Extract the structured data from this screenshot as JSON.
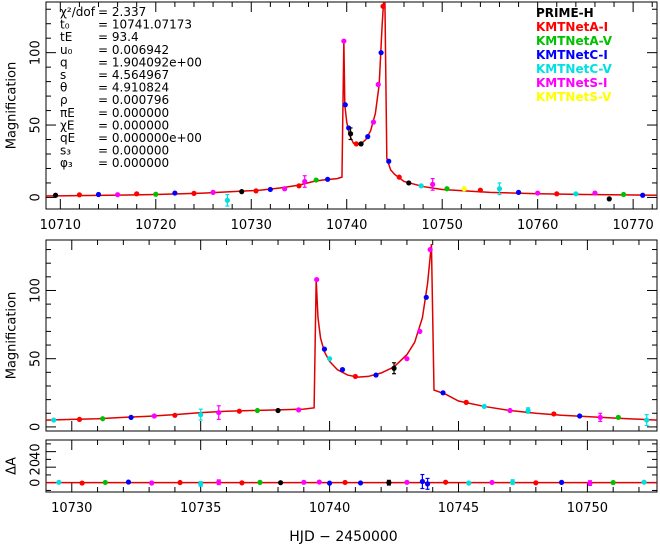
{
  "chart_data": [
    {
      "type": "line",
      "panel": "top",
      "ylabel": "Magnification",
      "xlim": [
        10708.5,
        10772.5
      ],
      "ylim": [
        -8,
        135
      ],
      "xticks": [
        10710,
        10720,
        10730,
        10740,
        10750,
        10760,
        10770
      ],
      "yticks": [
        0,
        50,
        100
      ],
      "fit_curve": {
        "name": "model",
        "color": "#e00000",
        "x": [
          10708.5,
          10715,
          10720,
          10725,
          10728,
          10731,
          10733,
          10735,
          10736.5,
          10737.5,
          10739.0,
          10739.5,
          10739.7,
          10739.8,
          10740.0,
          10740.3,
          10740.7,
          10741.1,
          10741.5,
          10742.0,
          10742.5,
          10743.0,
          10743.4,
          10743.7,
          10743.85,
          10744.0,
          10744.2,
          10744.6,
          10745.0,
          10746.0,
          10748.0,
          10750.0,
          10755.0,
          10760.0,
          10765.0,
          10772.5
        ],
        "y": [
          1,
          1.5,
          2,
          3,
          4,
          5,
          6.5,
          8.5,
          11,
          12,
          13,
          14,
          108,
          64,
          52,
          43,
          37.5,
          36.5,
          37,
          40,
          46,
          58,
          78,
          118,
          134,
          135,
          27,
          19,
          16,
          11,
          7.5,
          5.5,
          3.5,
          2.5,
          2,
          1.5
        ]
      },
      "observatories": [
        {
          "name": "PRIME-H",
          "color": "#000000"
        },
        {
          "name": "KMTNetA-I",
          "color": "#ff0000"
        },
        {
          "name": "KMTNetA-V",
          "color": "#00c000"
        },
        {
          "name": "KMTNetC-I",
          "color": "#0000ff"
        },
        {
          "name": "KMTNetC-V",
          "color": "#00e0e0"
        },
        {
          "name": "KMTNetS-I",
          "color": "#ff00ff"
        },
        {
          "name": "KMTNetS-V",
          "color": "#ffff00"
        }
      ],
      "parameters": [
        {
          "symbol": "χ²/dof",
          "text": "= 2.337"
        },
        {
          "symbol": "t₀",
          "text": "= 10741.07173"
        },
        {
          "symbol": "tE",
          "text": "= 93.4"
        },
        {
          "symbol": "u₀",
          "text": "= 0.006942"
        },
        {
          "symbol": "q",
          "text": "= 1.904092e+00"
        },
        {
          "symbol": "s",
          "text": "= 4.564967"
        },
        {
          "symbol": "θ",
          "text": "= 4.910824"
        },
        {
          "symbol": "ρ",
          "text": "= 0.000796"
        },
        {
          "symbol": "πE",
          "text": "= 0.000000"
        },
        {
          "symbol": "χE",
          "text": "= 0.000000"
        },
        {
          "symbol": "qE",
          "text": "= 0.000000e+00"
        },
        {
          "symbol": "s₃",
          "text": "= 0.000000"
        },
        {
          "symbol": "φ₃",
          "text": "= 0.000000"
        }
      ],
      "data_points": [
        {
          "x": 10709.5,
          "y": 1.5,
          "obs": 0
        },
        {
          "x": 10712,
          "y": 1.8,
          "obs": 1
        },
        {
          "x": 10714,
          "y": 2,
          "obs": 3
        },
        {
          "x": 10716,
          "y": 1.9,
          "obs": 5
        },
        {
          "x": 10718,
          "y": 2.5,
          "obs": 1
        },
        {
          "x": 10720,
          "y": 2.2,
          "obs": 2
        },
        {
          "x": 10722,
          "y": 3,
          "obs": 3
        },
        {
          "x": 10724,
          "y": 2.8,
          "obs": 1
        },
        {
          "x": 10726,
          "y": 3.5,
          "obs": 5
        },
        {
          "x": 10727.5,
          "y": -2,
          "obs": 4,
          "err": 4
        },
        {
          "x": 10729,
          "y": 4,
          "obs": 0
        },
        {
          "x": 10730.5,
          "y": 4.5,
          "obs": 1
        },
        {
          "x": 10732,
          "y": 5.5,
          "obs": 3
        },
        {
          "x": 10733.5,
          "y": 6,
          "obs": 5
        },
        {
          "x": 10735,
          "y": 8,
          "obs": 1
        },
        {
          "x": 10735.6,
          "y": 11,
          "obs": 5,
          "err": 4
        },
        {
          "x": 10736.8,
          "y": 12,
          "obs": 2
        },
        {
          "x": 10738,
          "y": 12.5,
          "obs": 3
        },
        {
          "x": 10739.7,
          "y": 108,
          "obs": 5
        },
        {
          "x": 10739.85,
          "y": 64,
          "obs": 3
        },
        {
          "x": 10740.2,
          "y": 48,
          "obs": 3
        },
        {
          "x": 10740.4,
          "y": 44,
          "obs": 0,
          "err": 4
        },
        {
          "x": 10741.0,
          "y": 37,
          "obs": 1
        },
        {
          "x": 10741.5,
          "y": 37,
          "obs": 0
        },
        {
          "x": 10742.2,
          "y": 42,
          "obs": 3
        },
        {
          "x": 10742.8,
          "y": 52,
          "obs": 5
        },
        {
          "x": 10743.3,
          "y": 78,
          "obs": 5
        },
        {
          "x": 10743.6,
          "y": 100,
          "obs": 3
        },
        {
          "x": 10743.8,
          "y": 132,
          "obs": 1
        },
        {
          "x": 10744.4,
          "y": 25,
          "obs": 3
        },
        {
          "x": 10745.5,
          "y": 14,
          "obs": 1
        },
        {
          "x": 10746.5,
          "y": 10,
          "obs": 0
        },
        {
          "x": 10747.8,
          "y": 8,
          "obs": 4
        },
        {
          "x": 10749,
          "y": 9,
          "obs": 5,
          "err": 4
        },
        {
          "x": 10750.5,
          "y": 6,
          "obs": 2
        },
        {
          "x": 10752.3,
          "y": 6,
          "obs": 6
        },
        {
          "x": 10754,
          "y": 5,
          "obs": 1
        },
        {
          "x": 10756,
          "y": 6,
          "obs": 4,
          "err": 4
        },
        {
          "x": 10758,
          "y": 3.5,
          "obs": 3
        },
        {
          "x": 10760,
          "y": 3,
          "obs": 5
        },
        {
          "x": 10762,
          "y": 2.5,
          "obs": 1
        },
        {
          "x": 10764,
          "y": 2.5,
          "obs": 4
        },
        {
          "x": 10766,
          "y": 3,
          "obs": 5
        },
        {
          "x": 10767.5,
          "y": -1,
          "obs": 0
        },
        {
          "x": 10769,
          "y": 2,
          "obs": 2
        },
        {
          "x": 10771,
          "y": 1.5,
          "obs": 3
        }
      ]
    },
    {
      "type": "line",
      "panel": "middle",
      "ylabel": "Magnification",
      "xlim": [
        10729,
        10752.7
      ],
      "ylim": [
        -3,
        137
      ],
      "xticks": [
        10730,
        10735,
        10740,
        10745,
        10750
      ],
      "yticks": [
        0,
        50,
        100
      ],
      "fit_curve": {
        "name": "model",
        "color": "#e00000",
        "x": [
          10729,
          10730,
          10731,
          10732,
          10733,
          10734,
          10735,
          10736,
          10737,
          10738,
          10739,
          10739.4,
          10739.48,
          10739.55,
          10739.65,
          10739.8,
          10740.0,
          10740.3,
          10740.7,
          10741.1,
          10741.5,
          10742.0,
          10742.5,
          10743.0,
          10743.3,
          10743.6,
          10743.8,
          10743.95,
          10744.05,
          10744.5,
          10745.0,
          10746.0,
          10747.0,
          10748.0,
          10749.0,
          10750.0,
          10751.0,
          10752.7
        ],
        "y": [
          5,
          5.5,
          6,
          7,
          7.8,
          9,
          10.5,
          11.5,
          12,
          12.5,
          13,
          14,
          108,
          80,
          65,
          55,
          48,
          42,
          38,
          36.5,
          37,
          39.5,
          44,
          53,
          62,
          80,
          105,
          134,
          27,
          24,
          19,
          15,
          12,
          10,
          8.5,
          7.5,
          6.5,
          5
        ]
      },
      "data_points": [
        {
          "x": 10729.3,
          "y": 5,
          "obs": 4
        },
        {
          "x": 10730.3,
          "y": 5.5,
          "obs": 1
        },
        {
          "x": 10731.2,
          "y": 6,
          "obs": 2
        },
        {
          "x": 10732.3,
          "y": 7,
          "obs": 3
        },
        {
          "x": 10733.2,
          "y": 8,
          "obs": 5
        },
        {
          "x": 10734,
          "y": 8.5,
          "obs": 1
        },
        {
          "x": 10735,
          "y": 9,
          "obs": 4,
          "err": 4
        },
        {
          "x": 10735.7,
          "y": 10.5,
          "obs": 5,
          "err": 5
        },
        {
          "x": 10736.5,
          "y": 11.5,
          "obs": 1
        },
        {
          "x": 10737.2,
          "y": 12,
          "obs": 2
        },
        {
          "x": 10738,
          "y": 12,
          "obs": 0
        },
        {
          "x": 10738.8,
          "y": 12.5,
          "obs": 5
        },
        {
          "x": 10739.5,
          "y": 108,
          "obs": 5
        },
        {
          "x": 10739.8,
          "y": 57,
          "obs": 3
        },
        {
          "x": 10740.0,
          "y": 50,
          "obs": 4
        },
        {
          "x": 10740.5,
          "y": 42,
          "obs": 3
        },
        {
          "x": 10741.0,
          "y": 37,
          "obs": 1
        },
        {
          "x": 10741.8,
          "y": 38,
          "obs": 3
        },
        {
          "x": 10742.5,
          "y": 43,
          "obs": 0,
          "err": 4
        },
        {
          "x": 10743.0,
          "y": 50,
          "obs": 5
        },
        {
          "x": 10743.5,
          "y": 70,
          "obs": 5
        },
        {
          "x": 10743.75,
          "y": 95,
          "obs": 3
        },
        {
          "x": 10743.9,
          "y": 130,
          "obs": 5
        },
        {
          "x": 10744.4,
          "y": 25,
          "obs": 3
        },
        {
          "x": 10745.3,
          "y": 18,
          "obs": 1
        },
        {
          "x": 10746,
          "y": 15,
          "obs": 4
        },
        {
          "x": 10747,
          "y": 12,
          "obs": 5
        },
        {
          "x": 10747.7,
          "y": 12,
          "obs": 4,
          "err": 2
        },
        {
          "x": 10748.7,
          "y": 9.5,
          "obs": 1
        },
        {
          "x": 10749.7,
          "y": 8,
          "obs": 3
        },
        {
          "x": 10750.5,
          "y": 7,
          "obs": 5,
          "err": 3
        },
        {
          "x": 10751.2,
          "y": 7,
          "obs": 2
        },
        {
          "x": 10752.3,
          "y": 5,
          "obs": 4,
          "err": 4
        }
      ]
    },
    {
      "type": "scatter",
      "panel": "residuals",
      "ylabel": "ΔA",
      "xlabel": "HJD − 2450000",
      "xlim": [
        10729,
        10752.7
      ],
      "ylim": [
        -12,
        55
      ],
      "xticks": [
        10730,
        10735,
        10740,
        10745,
        10750
      ],
      "yticks": [
        0,
        20,
        40
      ],
      "ytick_labels": [
        "0",
        "20",
        "40"
      ],
      "zero_line": 0,
      "data_points": [
        {
          "x": 10729.5,
          "y": 0.5,
          "obs": 4
        },
        {
          "x": 10730.4,
          "y": -0.5,
          "obs": 1
        },
        {
          "x": 10731.3,
          "y": 0.3,
          "obs": 2
        },
        {
          "x": 10732.2,
          "y": 0.8,
          "obs": 3
        },
        {
          "x": 10733.1,
          "y": -0.4,
          "obs": 5
        },
        {
          "x": 10734.2,
          "y": 0.2,
          "obs": 1
        },
        {
          "x": 10735.0,
          "y": -1.5,
          "obs": 4,
          "err": 3
        },
        {
          "x": 10735.7,
          "y": 0.6,
          "obs": 5,
          "err": 3
        },
        {
          "x": 10736.6,
          "y": -0.2,
          "obs": 1
        },
        {
          "x": 10737.3,
          "y": 0.4,
          "obs": 2
        },
        {
          "x": 10738.1,
          "y": 0,
          "obs": 0
        },
        {
          "x": 10739.0,
          "y": 0.5,
          "obs": 5
        },
        {
          "x": 10739.6,
          "y": 0.8,
          "obs": 5
        },
        {
          "x": 10740.0,
          "y": -0.6,
          "obs": 3
        },
        {
          "x": 10740.6,
          "y": 0.3,
          "obs": 1
        },
        {
          "x": 10741.2,
          "y": -0.3,
          "obs": 3
        },
        {
          "x": 10742.3,
          "y": 0,
          "obs": 0,
          "err": 3
        },
        {
          "x": 10743.0,
          "y": 0.5,
          "obs": 5
        },
        {
          "x": 10743.6,
          "y": 1.5,
          "obs": 3,
          "err": 9
        },
        {
          "x": 10743.8,
          "y": -1.5,
          "obs": 3,
          "err": 7
        },
        {
          "x": 10744.5,
          "y": 0.6,
          "obs": 1
        },
        {
          "x": 10745.4,
          "y": -0.4,
          "obs": 4
        },
        {
          "x": 10746.3,
          "y": 0.3,
          "obs": 5
        },
        {
          "x": 10747.1,
          "y": 0.8,
          "obs": 4,
          "err": 3
        },
        {
          "x": 10748.0,
          "y": -0.2,
          "obs": 1
        },
        {
          "x": 10749.0,
          "y": 0.4,
          "obs": 3
        },
        {
          "x": 10750.1,
          "y": -0.5,
          "obs": 5,
          "err": 3
        },
        {
          "x": 10751.0,
          "y": 0.2,
          "obs": 2
        },
        {
          "x": 10752.2,
          "y": 0.6,
          "obs": 4
        }
      ]
    }
  ]
}
